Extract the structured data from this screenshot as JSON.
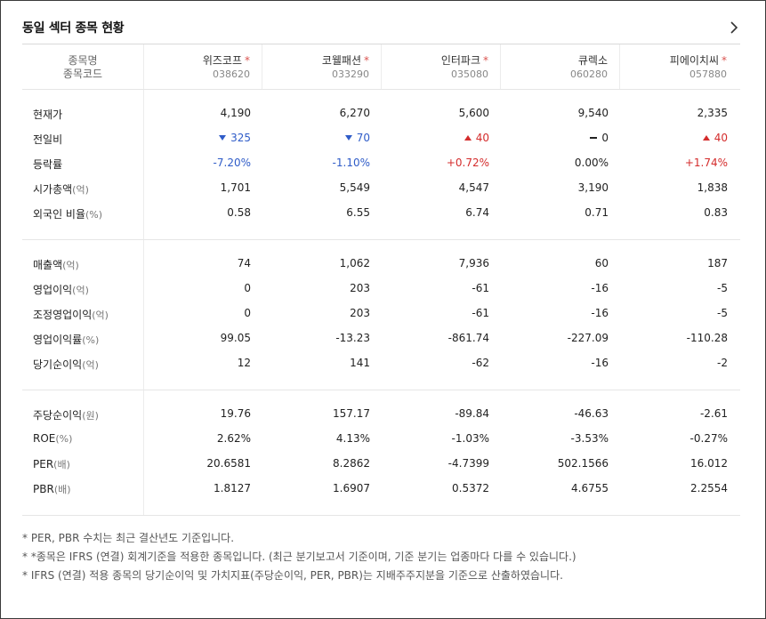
{
  "title": "동일 섹터 종목 현황",
  "header": {
    "name_label": "종목명",
    "code_label": "종목코드",
    "star": "*"
  },
  "companies": [
    {
      "name": "위즈코프",
      "code": "038620",
      "ifrs": true
    },
    {
      "name": "코웰패션",
      "code": "033290",
      "ifrs": true
    },
    {
      "name": "인터파크",
      "code": "035080",
      "ifrs": true
    },
    {
      "name": "큐렉소",
      "code": "060280",
      "ifrs": false
    },
    {
      "name": "피에이치씨",
      "code": "057880",
      "ifrs": true
    }
  ],
  "rows": {
    "price": {
      "label": "현재가",
      "unit": "",
      "values": [
        "4,190",
        "6,270",
        "5,600",
        "9,540",
        "2,335"
      ]
    },
    "change": {
      "label": "전일비",
      "unit": "",
      "values": [
        "325",
        "70",
        "40",
        "0",
        "40"
      ],
      "directions": [
        "down",
        "down",
        "up",
        "flat",
        "up"
      ]
    },
    "rate": {
      "label": "등락률",
      "unit": "",
      "values": [
        "-7.20%",
        "-1.10%",
        "+0.72%",
        "0.00%",
        "+1.74%"
      ],
      "directions": [
        "down",
        "down",
        "up",
        "flat",
        "up"
      ]
    },
    "mktcap": {
      "label": "시가총액",
      "unit": "(억)",
      "values": [
        "1,701",
        "5,549",
        "4,547",
        "3,190",
        "1,838"
      ]
    },
    "foreign": {
      "label": "외국인 비율",
      "unit": "(%)",
      "values": [
        "0.58",
        "6.55",
        "6.74",
        "0.71",
        "0.83"
      ]
    },
    "sales": {
      "label": "매출액",
      "unit": "(억)",
      "values": [
        "74",
        "1,062",
        "7,936",
        "60",
        "187"
      ]
    },
    "op_profit": {
      "label": "영업이익",
      "unit": "(억)",
      "values": [
        "0",
        "203",
        "-61",
        "-16",
        "-5"
      ]
    },
    "adj_op_profit": {
      "label": "조정영업이익",
      "unit": "(억)",
      "values": [
        "0",
        "203",
        "-61",
        "-16",
        "-5"
      ]
    },
    "op_margin": {
      "label": "영업이익률",
      "unit": "(%)",
      "values": [
        "99.05",
        "-13.23",
        "-861.74",
        "-227.09",
        "-110.28"
      ]
    },
    "net_profit": {
      "label": "당기순이익",
      "unit": "(억)",
      "values": [
        "12",
        "141",
        "-62",
        "-16",
        "-2"
      ]
    },
    "eps": {
      "label": "주당순이익",
      "unit": "(원)",
      "values": [
        "19.76",
        "157.17",
        "-89.84",
        "-46.63",
        "-2.61"
      ]
    },
    "roe": {
      "label": "ROE",
      "unit": "(%)",
      "values": [
        "2.62%",
        "4.13%",
        "-1.03%",
        "-3.53%",
        "-0.27%"
      ]
    },
    "per": {
      "label": "PER",
      "unit": "(배)",
      "values": [
        "20.6581",
        "8.2862",
        "-4.7399",
        "502.1566",
        "16.012"
      ]
    },
    "pbr": {
      "label": "PBR",
      "unit": "(배)",
      "values": [
        "1.8127",
        "1.6907",
        "0.5372",
        "4.6755",
        "2.2554"
      ]
    }
  },
  "notes": [
    "* PER, PBR 수치는 최근 결산년도 기준입니다.",
    "* *종목은 IFRS (연결) 회계기준을 적용한 종목입니다. (최근 분기보고서 기준이며, 기준 분기는 업종마다 다를 수 있습니다.)",
    "* IFRS (연결) 적용 종목의 당기순이익 및 가치지표(주당순이익, PER, PBR)는 지배주주지분을 기준으로 산출하였습니다."
  ],
  "colors": {
    "down": "#2f5cc8",
    "up": "#d42c2c",
    "star": "#d9534f"
  }
}
